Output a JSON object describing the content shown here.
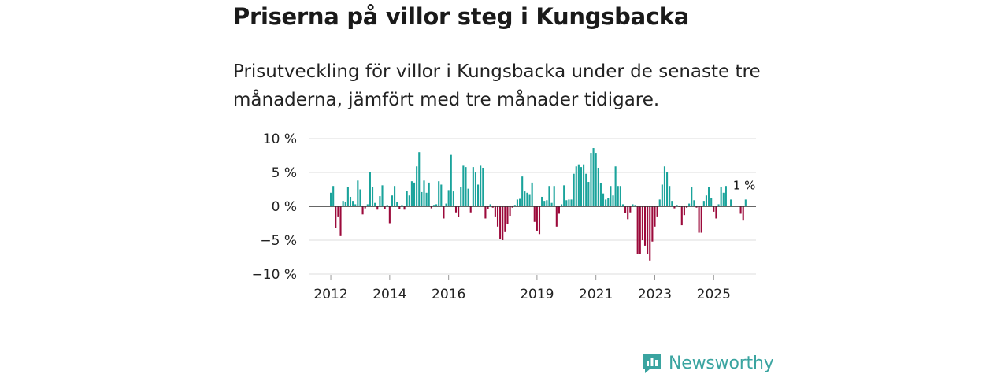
{
  "header": {
    "title": "Priserna på villor steg i Kungsbacka",
    "subtitle": "Prisutveckling för villor i Kungsbacka under de senaste tre månaderna, jämfört med tre månader tidigare."
  },
  "brand": {
    "name": "Newsworthy",
    "color": "#3aa4a0"
  },
  "colors": {
    "positive": "#1aa39b",
    "negative": "#9c0a3b",
    "grid": "#dddddd",
    "zero": "#333333"
  },
  "chart_data": {
    "type": "bar",
    "title": "Priserna på villor steg i Kungsbacka",
    "xlabel": "",
    "ylabel": "",
    "ylim": [
      -10,
      10
    ],
    "y_ticks": [
      {
        "value": 10,
        "label": "10 %"
      },
      {
        "value": 5,
        "label": "5 %"
      },
      {
        "value": 0,
        "label": "0 %"
      },
      {
        "value": -5,
        "label": "−5 %"
      },
      {
        "value": -10,
        "label": "−10 %"
      }
    ],
    "x_ticks": [
      {
        "year": 2012,
        "label": "2012"
      },
      {
        "year": 2014,
        "label": "2014"
      },
      {
        "year": 2016,
        "label": "2016"
      },
      {
        "year": 2019,
        "label": "2019"
      },
      {
        "year": 2021,
        "label": "2021"
      },
      {
        "year": 2023,
        "label": "2023"
      },
      {
        "year": 2025,
        "label": "2025"
      }
    ],
    "start": {
      "year": 2012,
      "month": 1
    },
    "series": [
      {
        "name": "Prisutveckling (%)",
        "values": [
          2,
          3,
          -3.2,
          -1.5,
          -4.4,
          0.8,
          0.7,
          2.8,
          1.4,
          0.8,
          0.3,
          3.8,
          2.5,
          -1.2,
          -0.3,
          0.3,
          5.1,
          2.8,
          0.5,
          -0.5,
          1.5,
          3.1,
          -0.4,
          0.2,
          -2.5,
          1.6,
          3,
          0.6,
          -0.4,
          0.2,
          -0.5,
          2.3,
          1.6,
          3.7,
          3.5,
          5.9,
          8,
          2.1,
          3.8,
          2,
          3.5,
          -0.3,
          0.2,
          0.3,
          3.7,
          3.2,
          -1.8,
          0.4,
          2.4,
          7.6,
          2.2,
          -0.9,
          -1.6,
          2.9,
          6,
          5.8,
          2.6,
          -0.9,
          5.8,
          5,
          3.2,
          6,
          5.7,
          -1.8,
          -0.4,
          0.3,
          -0.2,
          -1.5,
          -3,
          -4.8,
          -5,
          -3.7,
          -2.6,
          -1.4,
          -0.2,
          0.2,
          1,
          1.1,
          4.4,
          2.2,
          2,
          1.8,
          3.5,
          -2.3,
          -3.6,
          -4.1,
          1.4,
          0.8,
          0.9,
          3,
          0.5,
          3,
          -3,
          -1.1,
          0.3,
          3.1,
          0.9,
          1,
          1,
          4.8,
          5.9,
          6.2,
          5.8,
          6.2,
          4.8,
          3.6,
          7.9,
          8.6,
          7.9,
          5.7,
          3.4,
          1.9,
          1,
          1.2,
          3,
          1.6,
          5.9,
          3,
          3,
          0.3,
          -1,
          -1.9,
          -0.9,
          0.3,
          0.2,
          -7,
          -7,
          -5,
          -5.8,
          -7,
          -8,
          -5.2,
          -3,
          -1.5,
          1,
          3.2,
          5.9,
          5,
          3,
          0.8,
          -0.3,
          0.2,
          -0.1,
          -2.8,
          -1.3,
          -0.2,
          0.4,
          2.9,
          0.9,
          -0.2,
          -3.9,
          -3.9,
          0.8,
          1.6,
          2.8,
          1.2,
          -0.8,
          -1.8,
          0.3,
          2.8,
          2,
          3,
          0.1,
          1,
          0.1,
          0.1,
          0.1,
          -1.1,
          -2,
          1
        ]
      }
    ],
    "annotation": {
      "label": "1 %",
      "index": 169
    }
  }
}
